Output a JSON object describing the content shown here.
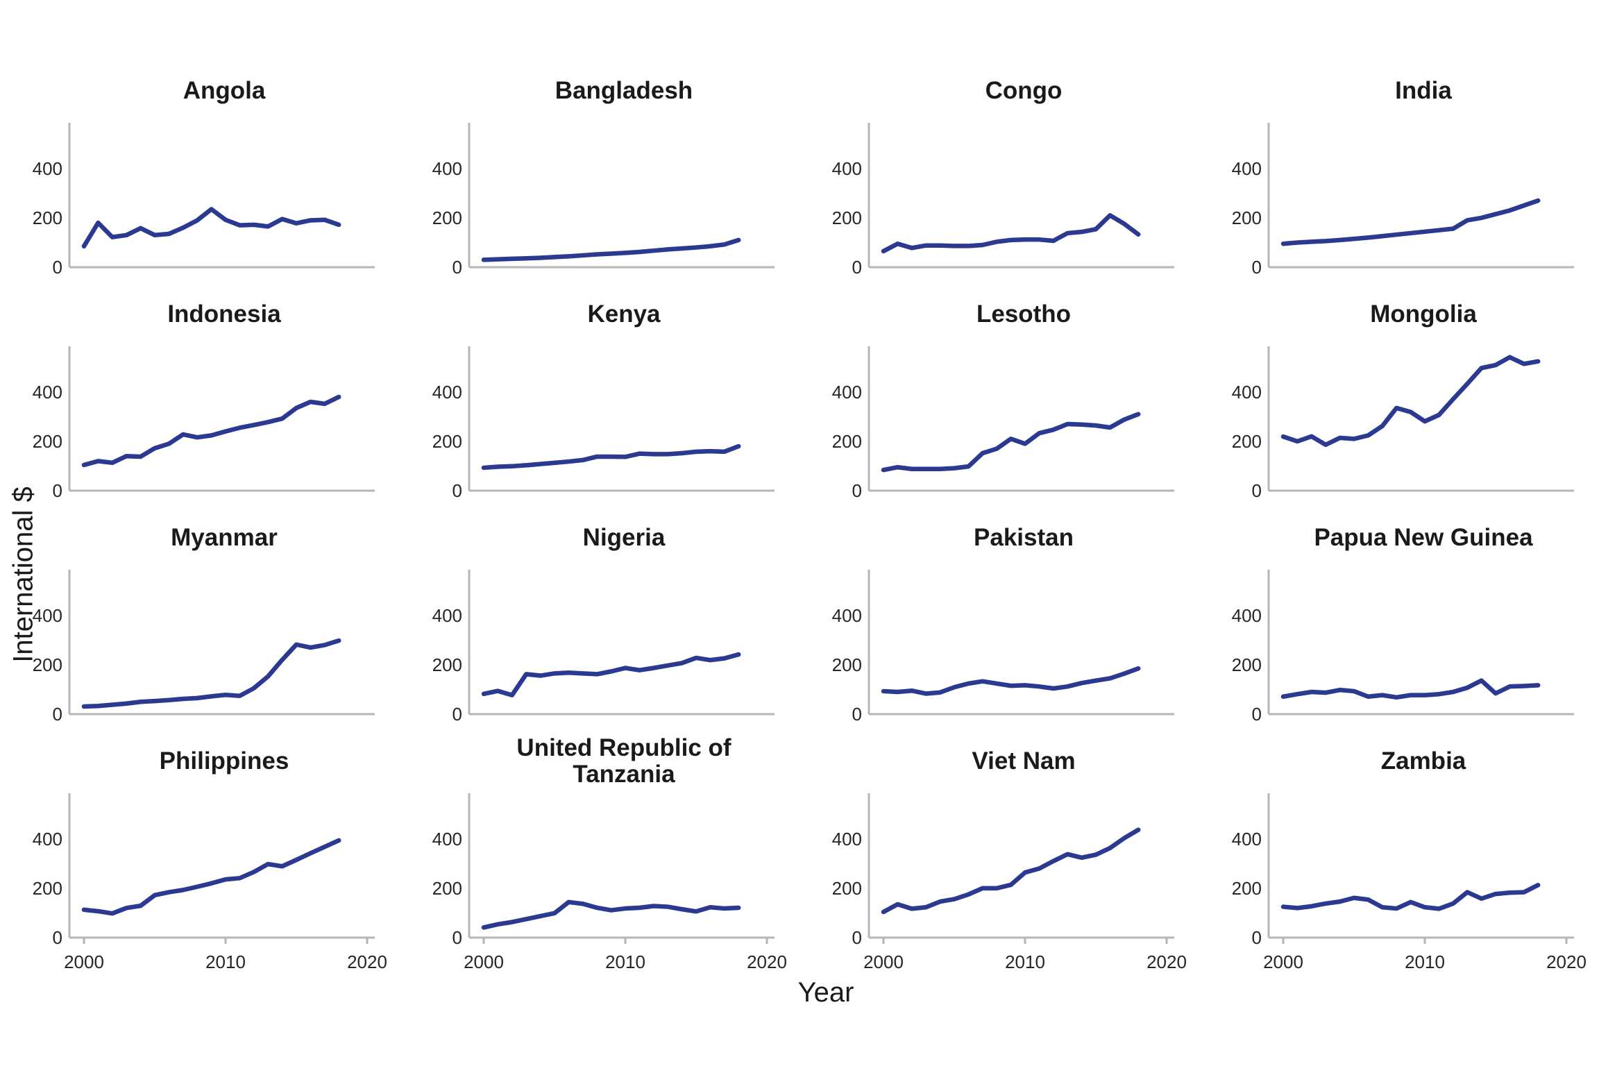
{
  "chart_data": {
    "type": "line",
    "x_label": "Year",
    "y_label": "International $",
    "x": [
      2000,
      2001,
      2002,
      2003,
      2004,
      2005,
      2006,
      2007,
      2008,
      2009,
      2010,
      2011,
      2012,
      2013,
      2014,
      2015,
      2016,
      2017,
      2018
    ],
    "x_ticks": [
      2000,
      2010,
      2020
    ],
    "y_ticks": [
      0,
      200,
      400
    ],
    "xlim": [
      1999,
      2021.5
    ],
    "ylim": [
      0,
      585
    ],
    "grid": false,
    "legend": false,
    "line_color": "#2B3990",
    "axis_color": "#b5b5b5",
    "facets": [
      {
        "title": "Angola",
        "values": [
          85,
          180,
          122,
          130,
          158,
          130,
          135,
          160,
          190,
          235,
          192,
          170,
          172,
          165,
          195,
          178,
          190,
          192,
          172
        ]
      },
      {
        "title": "Bangladesh",
        "values": [
          30,
          32,
          34,
          36,
          38,
          41,
          44,
          48,
          52,
          55,
          58,
          62,
          67,
          72,
          76,
          80,
          85,
          92,
          110
        ]
      },
      {
        "title": "Congo",
        "values": [
          65,
          95,
          78,
          88,
          88,
          86,
          86,
          90,
          103,
          110,
          112,
          112,
          107,
          138,
          143,
          154,
          210,
          176,
          133
        ]
      },
      {
        "title": "India",
        "values": [
          95,
          100,
          103,
          106,
          110,
          115,
          120,
          126,
          132,
          138,
          144,
          150,
          156,
          190,
          200,
          215,
          230,
          250,
          270
        ]
      },
      {
        "title": "Indonesia",
        "values": [
          104,
          120,
          113,
          140,
          138,
          172,
          190,
          228,
          216,
          224,
          240,
          255,
          266,
          278,
          292,
          335,
          360,
          352,
          380
        ]
      },
      {
        "title": "Kenya",
        "values": [
          93,
          97,
          99,
          103,
          108,
          113,
          118,
          124,
          138,
          138,
          137,
          150,
          148,
          148,
          152,
          158,
          160,
          158,
          180
        ]
      },
      {
        "title": "Lesotho",
        "values": [
          84,
          95,
          88,
          88,
          88,
          91,
          98,
          152,
          170,
          210,
          190,
          233,
          247,
          270,
          268,
          264,
          256,
          288,
          310
        ]
      },
      {
        "title": "Mongolia",
        "values": [
          219,
          200,
          220,
          186,
          214,
          210,
          224,
          262,
          335,
          319,
          281,
          307,
          371,
          433,
          497,
          509,
          541,
          514,
          524
        ]
      },
      {
        "title": "Myanmar",
        "values": [
          31,
          33,
          38,
          43,
          50,
          53,
          57,
          62,
          65,
          72,
          78,
          74,
          105,
          153,
          220,
          282,
          270,
          280,
          298
        ]
      },
      {
        "title": "Nigeria",
        "values": [
          82,
          94,
          77,
          162,
          156,
          165,
          168,
          165,
          162,
          173,
          187,
          178,
          187,
          197,
          207,
          228,
          219,
          226,
          242
        ]
      },
      {
        "title": "Pakistan",
        "values": [
          93,
          90,
          95,
          83,
          88,
          109,
          124,
          133,
          124,
          115,
          117,
          112,
          104,
          112,
          126,
          136,
          145,
          164,
          185
        ]
      },
      {
        "title": "Papua New Guinea",
        "values": [
          71,
          81,
          90,
          87,
          98,
          93,
          71,
          77,
          68,
          77,
          77,
          81,
          90,
          107,
          136,
          84,
          112,
          114,
          117
        ]
      },
      {
        "title": "Philippines",
        "values": [
          113,
          107,
          98,
          120,
          129,
          172,
          184,
          193,
          206,
          220,
          236,
          241,
          266,
          298,
          289,
          315,
          342,
          368,
          394
        ]
      },
      {
        "title": "United Republic of Tanzania",
        "values": [
          41,
          54,
          63,
          75,
          87,
          99,
          144,
          137,
          121,
          111,
          118,
          121,
          128,
          125,
          115,
          106,
          123,
          118,
          121
        ]
      },
      {
        "title": "Viet Nam",
        "values": [
          104,
          135,
          117,
          123,
          146,
          156,
          175,
          200,
          200,
          214,
          264,
          280,
          310,
          338,
          324,
          336,
          363,
          403,
          437
        ]
      },
      {
        "title": "Zambia",
        "values": [
          125,
          120,
          127,
          138,
          146,
          161,
          154,
          123,
          118,
          144,
          123,
          117,
          138,
          184,
          158,
          177,
          182,
          184,
          213
        ]
      }
    ]
  }
}
